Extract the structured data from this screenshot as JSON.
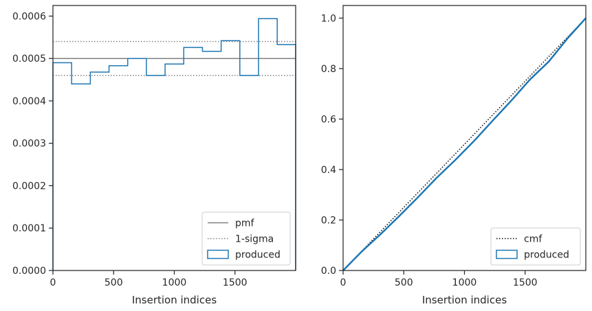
{
  "chart_data": [
    {
      "type": "histogram",
      "xlabel": "Insertion indices",
      "ylabel": "",
      "xlim": [
        0,
        2000
      ],
      "ylim": [
        0,
        0.000625
      ],
      "xticks": [
        0,
        500,
        1000,
        1500
      ],
      "xtick_labels": [
        "0",
        "500",
        "1000",
        "1500"
      ],
      "yticks": [
        0,
        0.0001,
        0.0002,
        0.0003,
        0.0004,
        0.0005,
        0.0006
      ],
      "ytick_labels": [
        "0.0000",
        "0.0001",
        "0.0002",
        "0.0003",
        "0.0004",
        "0.0005",
        "0.0006"
      ],
      "bin_edges": [
        0,
        154,
        308,
        462,
        616,
        770,
        924,
        1078,
        1232,
        1386,
        1540,
        1694,
        1848,
        2000
      ],
      "values": [
        0.00049,
        0.00044,
        0.000468,
        0.000483,
        0.0005,
        0.00046,
        0.000487,
        0.000526,
        0.000517,
        0.000542,
        0.00046,
        0.000594,
        0.000533
      ],
      "pmf": 0.0005,
      "sigma_band": [
        0.00046,
        0.00054
      ],
      "grid": false,
      "legend_position": "lower-right",
      "legend": [
        {
          "label": "pmf",
          "style": "solid",
          "color": "#808080"
        },
        {
          "label": "1-sigma",
          "style": "dotted",
          "color": "#808080"
        },
        {
          "label": "produced",
          "style": "step",
          "color": "#1f77b4"
        }
      ]
    },
    {
      "type": "line",
      "xlabel": "Insertion indices",
      "ylabel": "",
      "xlim": [
        0,
        2000
      ],
      "ylim": [
        0,
        1.05
      ],
      "xticks": [
        0,
        500,
        1000,
        1500
      ],
      "xtick_labels": [
        "0",
        "500",
        "1000",
        "1500"
      ],
      "yticks": [
        0,
        0.2,
        0.4,
        0.6,
        0.8,
        1.0
      ],
      "ytick_labels": [
        "0.0",
        "0.2",
        "0.4",
        "0.6",
        "0.8",
        "1.0"
      ],
      "series": [
        {
          "label": "cmf",
          "style": "dotted",
          "color": "#000000",
          "x": [
            0,
            2000
          ],
          "y": [
            0,
            1.0
          ]
        },
        {
          "label": "produced",
          "style": "step",
          "color": "#1f77b4",
          "x": [
            0,
            154,
            308,
            462,
            616,
            770,
            924,
            1078,
            1232,
            1386,
            1540,
            1694,
            1848,
            2000
          ],
          "y": [
            0,
            0.0755,
            0.1433,
            0.2154,
            0.2898,
            0.3668,
            0.4376,
            0.5126,
            0.5936,
            0.6732,
            0.7567,
            0.8275,
            0.919,
            1.0
          ]
        }
      ],
      "grid": false,
      "legend_position": "lower-right",
      "legend": [
        {
          "label": "cmf",
          "style": "dotted",
          "color": "#000000"
        },
        {
          "label": "produced",
          "style": "step",
          "color": "#1f77b4"
        }
      ]
    }
  ]
}
